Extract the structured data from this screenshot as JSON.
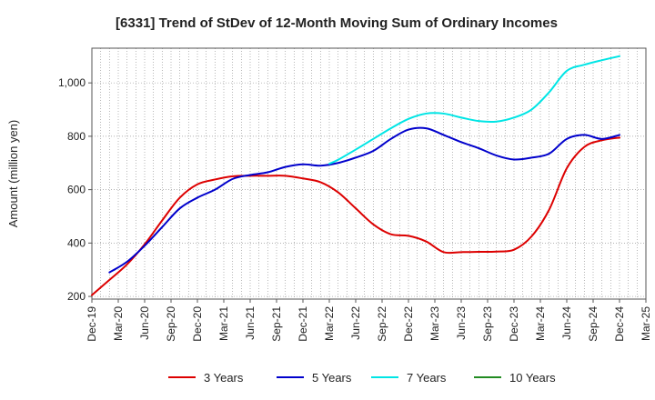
{
  "chart_data": {
    "type": "line",
    "title": "[6331]  Trend of StDev of 12-Month Moving Sum of Ordinary Incomes",
    "xlabel": "",
    "ylabel": "Amount (million yen)",
    "x_ticks": [
      "Dec-19",
      "Mar-20",
      "Jun-20",
      "Sep-20",
      "Dec-20",
      "Mar-21",
      "Jun-21",
      "Sep-21",
      "Dec-21",
      "Mar-22",
      "Jun-22",
      "Sep-22",
      "Dec-22",
      "Mar-23",
      "Jun-23",
      "Sep-23",
      "Dec-23",
      "Mar-24",
      "Jun-24",
      "Sep-24",
      "Dec-24",
      "Mar-25"
    ],
    "y_ticks": [
      200,
      400,
      600,
      800,
      "1,000"
    ],
    "ylim": [
      190,
      1130
    ],
    "xlim": [
      0,
      63
    ],
    "grid": true,
    "legend_position": "bottom",
    "series": [
      {
        "name": "3 Years",
        "color": "#dd0000",
        "x": [
          0,
          2,
          4,
          6,
          8,
          10,
          12,
          14,
          16,
          18,
          20,
          22,
          24,
          26,
          28,
          30,
          32,
          34,
          36,
          38,
          40,
          42,
          44,
          46,
          48,
          50,
          52,
          54,
          56,
          58,
          60
        ],
        "values": [
          205,
          262,
          320,
          395,
          485,
          570,
          620,
          638,
          650,
          652,
          652,
          652,
          642,
          628,
          590,
          530,
          470,
          433,
          427,
          406,
          366,
          366,
          367,
          368,
          375,
          425,
          525,
          680,
          760,
          785,
          795
        ]
      },
      {
        "name": "5 Years",
        "color": "#0000cc",
        "x": [
          2,
          4,
          6,
          8,
          10,
          12,
          14,
          16,
          18,
          20,
          22,
          24,
          26,
          28,
          30,
          32,
          34,
          36,
          38,
          40,
          42,
          44,
          46,
          48,
          50,
          52,
          54,
          56,
          58,
          60
        ],
        "values": [
          290,
          330,
          390,
          460,
          530,
          570,
          600,
          640,
          655,
          665,
          685,
          695,
          690,
          700,
          720,
          745,
          790,
          825,
          830,
          805,
          778,
          755,
          728,
          713,
          720,
          735,
          790,
          805,
          790,
          805
        ]
      },
      {
        "name": "7 Years",
        "color": "#00e5e5",
        "x": [
          27,
          28,
          30,
          32,
          34,
          36,
          38,
          40,
          42,
          44,
          46,
          48,
          50,
          52,
          54,
          56,
          58,
          60
        ],
        "values": [
          697,
          712,
          750,
          790,
          830,
          865,
          885,
          885,
          870,
          857,
          855,
          870,
          900,
          965,
          1045,
          1068,
          1085,
          1100
        ]
      },
      {
        "name": "10 Years",
        "color": "#228B22",
        "x": [],
        "values": []
      }
    ]
  }
}
